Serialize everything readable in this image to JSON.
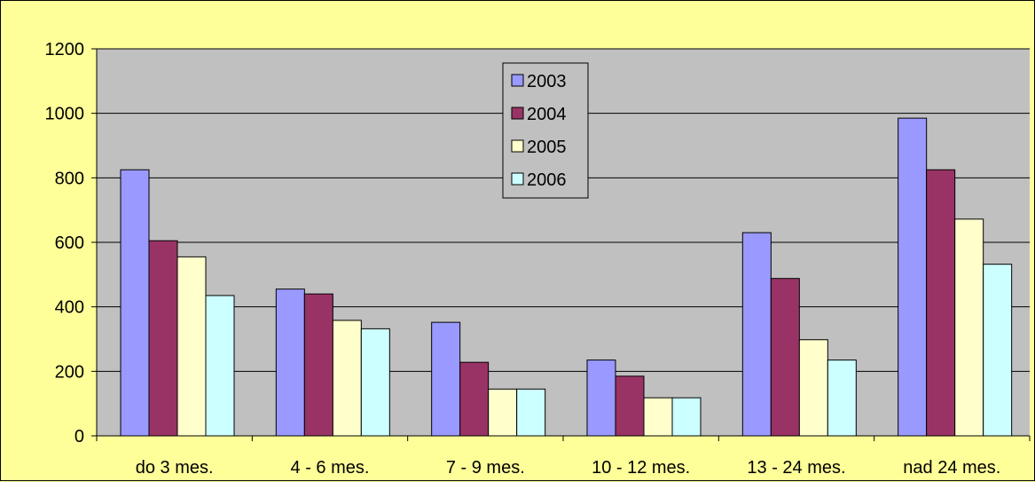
{
  "chart_data": {
    "type": "bar",
    "title": "",
    "xlabel": "",
    "ylabel": "",
    "categories": [
      "do 3 mes.",
      "4 - 6 mes.",
      "7 - 9 mes.",
      "10 - 12 mes.",
      "13 - 24 mes.",
      "nad 24 mes."
    ],
    "ylim": [
      0,
      1200
    ],
    "yticks": [
      0,
      200,
      400,
      600,
      800,
      1000,
      1200
    ],
    "grid": true,
    "legend_position": "top-center",
    "series": [
      {
        "name": "2003",
        "color": "#9999FF",
        "values": [
          825,
          455,
          352,
          235,
          630,
          985
        ]
      },
      {
        "name": "2004",
        "color": "#993366",
        "values": [
          605,
          440,
          228,
          185,
          488,
          825
        ]
      },
      {
        "name": "2005",
        "color": "#FFFFCC",
        "values": [
          555,
          358,
          145,
          118,
          298,
          672
        ]
      },
      {
        "name": "2006",
        "color": "#CCFFFF",
        "values": [
          435,
          332,
          145,
          118,
          235,
          532
        ]
      }
    ],
    "colors": {
      "background": "#FFFF99",
      "plot_area": "#C0C0C0",
      "gridline": "#000000"
    }
  }
}
